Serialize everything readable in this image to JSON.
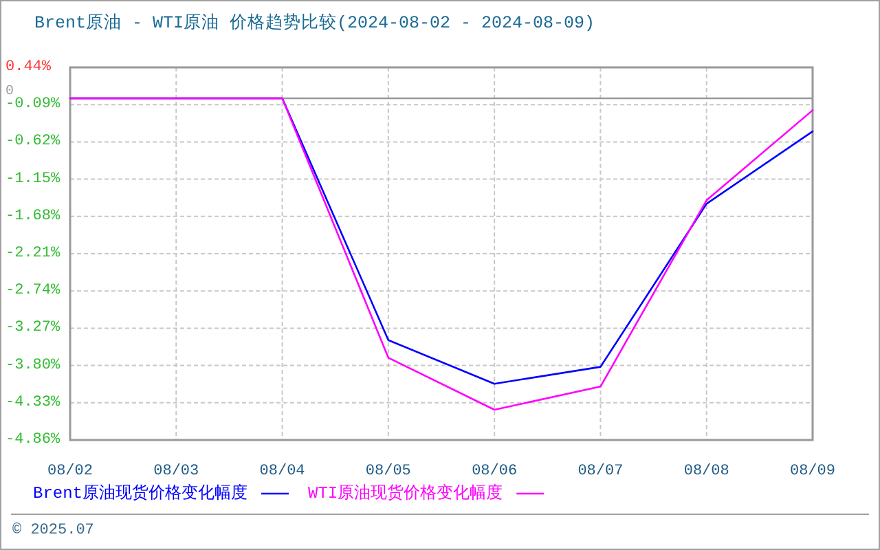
{
  "chart_data": {
    "type": "line",
    "title": "Brent原油 - WTI原油 价格趋势比较(2024-08-02 - 2024-08-09)",
    "categories": [
      "08/02",
      "08/03",
      "08/04",
      "08/05",
      "08/06",
      "08/07",
      "08/08",
      "08/09"
    ],
    "series": [
      {
        "name": "Brent原油现货价格变化幅度",
        "color": "#0000ff",
        "values": [
          0,
          0,
          0,
          -3.44,
          -4.06,
          -3.82,
          -1.5,
          -0.47
        ]
      },
      {
        "name": "WTI原油现货价格变化幅度",
        "color": "#ff00ff",
        "values": [
          0,
          0,
          0,
          -3.69,
          -4.43,
          -4.1,
          -1.45,
          -0.17
        ]
      }
    ],
    "ylim": [
      -4.86,
      0.44
    ],
    "yticks": [
      {
        "value": 0.44,
        "label": "0.44%"
      },
      {
        "value": -0.09,
        "label": "-0.09%"
      },
      {
        "value": -0.62,
        "label": "-0.62%"
      },
      {
        "value": -1.15,
        "label": "-1.15%"
      },
      {
        "value": -1.68,
        "label": "-1.68%"
      },
      {
        "value": -2.21,
        "label": "-2.21%"
      },
      {
        "value": -2.74,
        "label": "-2.74%"
      },
      {
        "value": -3.27,
        "label": "-3.27%"
      },
      {
        "value": -3.8,
        "label": "-3.80%"
      },
      {
        "value": -4.33,
        "label": "-4.33%"
      },
      {
        "value": -4.86,
        "label": "-4.86%"
      }
    ],
    "ref_lines": [
      {
        "axis": "y",
        "value": 0,
        "label": "0",
        "color": "#999999",
        "line_style": "solid"
      }
    ],
    "grid": true,
    "legend": "bottom",
    "line_style": "solid",
    "annotations": [
      "© 2025.07"
    ]
  }
}
